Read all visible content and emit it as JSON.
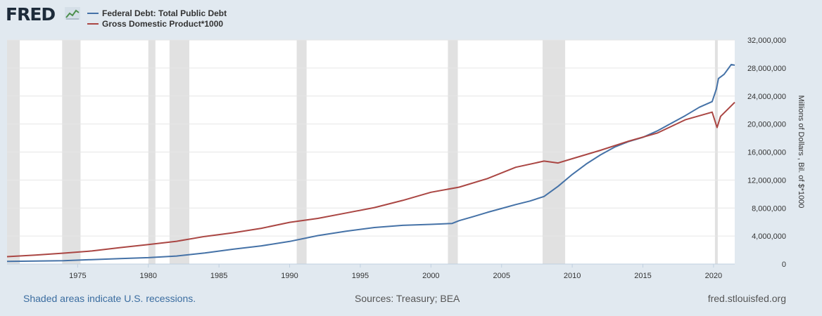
{
  "logo": {
    "text": "FRED",
    "icon": "line-chart-icon"
  },
  "legend": [
    {
      "label": "Federal Debt: Total Public Debt",
      "color": "#4572a7"
    },
    {
      "label": "Gross Domestic Product*1000",
      "color": "#aa4643"
    }
  ],
  "footer": {
    "left": "Shaded areas indicate U.S. recessions.",
    "center": "Sources: Treasury; BEA",
    "right": "fred.stlouisfed.org"
  },
  "chart_data": {
    "type": "line",
    "ylabel": "Millions of Dollars , Bil. of $*1000",
    "xlim": [
      1970.0,
      2021.5
    ],
    "ylim": [
      0,
      32000000
    ],
    "yticks": [
      {
        "value": 0,
        "label": "0"
      },
      {
        "value": 4000000,
        "label": "4,000,000"
      },
      {
        "value": 8000000,
        "label": "8,000,000"
      },
      {
        "value": 12000000,
        "label": "12,000,000"
      },
      {
        "value": 16000000,
        "label": "16,000,000"
      },
      {
        "value": 20000000,
        "label": "20,000,000"
      },
      {
        "value": 24000000,
        "label": "24,000,000"
      },
      {
        "value": 28000000,
        "label": "28,000,000"
      },
      {
        "value": 32000000,
        "label": "32,000,000"
      }
    ],
    "xticks": [
      {
        "value": 1975,
        "label": "1975"
      },
      {
        "value": 1980,
        "label": "1980"
      },
      {
        "value": 1985,
        "label": "1985"
      },
      {
        "value": 1990,
        "label": "1990"
      },
      {
        "value": 1995,
        "label": "1995"
      },
      {
        "value": 2000,
        "label": "2000"
      },
      {
        "value": 2005,
        "label": "2005"
      },
      {
        "value": 2010,
        "label": "2010"
      },
      {
        "value": 2015,
        "label": "2015"
      },
      {
        "value": 2020,
        "label": "2020"
      }
    ],
    "recessions": [
      [
        1969.9,
        1970.9
      ],
      [
        1973.9,
        1975.2
      ],
      [
        1980.0,
        1980.5
      ],
      [
        1981.5,
        1982.9
      ],
      [
        1990.5,
        1991.2
      ],
      [
        2001.2,
        2001.9
      ],
      [
        2007.9,
        2009.5
      ],
      [
        2020.1,
        2020.3
      ]
    ],
    "series": [
      {
        "name": "Federal Debt: Total Public Debt",
        "color": "#4572a7",
        "points": [
          [
            1970,
            380000
          ],
          [
            1972,
            430000
          ],
          [
            1974,
            480000
          ],
          [
            1976,
            630000
          ],
          [
            1978,
            780000
          ],
          [
            1980,
            910000
          ],
          [
            1982,
            1140000
          ],
          [
            1984,
            1570000
          ],
          [
            1986,
            2120000
          ],
          [
            1988,
            2600000
          ],
          [
            1990,
            3230000
          ],
          [
            1992,
            4060000
          ],
          [
            1994,
            4690000
          ],
          [
            1996,
            5220000
          ],
          [
            1998,
            5530000
          ],
          [
            2000,
            5670000
          ],
          [
            2001.5,
            5800000
          ],
          [
            2002,
            6200000
          ],
          [
            2003,
            6780000
          ],
          [
            2004,
            7380000
          ],
          [
            2005,
            7930000
          ],
          [
            2006,
            8500000
          ],
          [
            2007,
            9000000
          ],
          [
            2008,
            9650000
          ],
          [
            2009,
            11100000
          ],
          [
            2010,
            12800000
          ],
          [
            2011,
            14300000
          ],
          [
            2012,
            15600000
          ],
          [
            2013,
            16700000
          ],
          [
            2014,
            17500000
          ],
          [
            2015,
            18100000
          ],
          [
            2016,
            19000000
          ],
          [
            2017,
            20100000
          ],
          [
            2018,
            21200000
          ],
          [
            2019,
            22400000
          ],
          [
            2019.9,
            23200000
          ],
          [
            2020.2,
            25000000
          ],
          [
            2020.35,
            26500000
          ],
          [
            2020.75,
            27100000
          ],
          [
            2021.0,
            27800000
          ],
          [
            2021.25,
            28500000
          ],
          [
            2021.5,
            28400000
          ]
        ]
      },
      {
        "name": "Gross Domestic Product*1000",
        "color": "#aa4643",
        "points": [
          [
            1970,
            1050000
          ],
          [
            1972,
            1270000
          ],
          [
            1974,
            1550000
          ],
          [
            1976,
            1870000
          ],
          [
            1978,
            2350000
          ],
          [
            1980,
            2790000
          ],
          [
            1982,
            3250000
          ],
          [
            1984,
            3940000
          ],
          [
            1986,
            4460000
          ],
          [
            1988,
            5110000
          ],
          [
            1990,
            5960000
          ],
          [
            1992,
            6520000
          ],
          [
            1994,
            7290000
          ],
          [
            1996,
            8070000
          ],
          [
            1998,
            9090000
          ],
          [
            2000,
            10250000
          ],
          [
            2002,
            10980000
          ],
          [
            2004,
            12210000
          ],
          [
            2006,
            13820000
          ],
          [
            2008,
            14710000
          ],
          [
            2009,
            14440000
          ],
          [
            2010,
            15050000
          ],
          [
            2012,
            16250000
          ],
          [
            2014,
            17550000
          ],
          [
            2016,
            18700000
          ],
          [
            2018,
            20600000
          ],
          [
            2019.9,
            21700000
          ],
          [
            2020.25,
            19500000
          ],
          [
            2020.5,
            21100000
          ],
          [
            2021.0,
            22100000
          ],
          [
            2021.5,
            23100000
          ]
        ]
      }
    ]
  }
}
